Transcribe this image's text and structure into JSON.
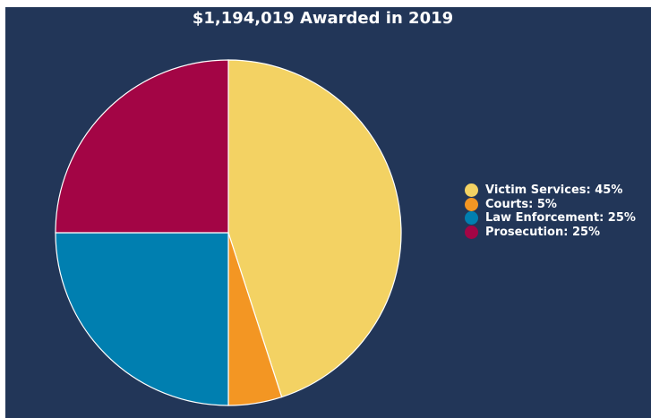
{
  "chart_data": {
    "type": "pie",
    "title": "$1,194,019 Awarded in 2019",
    "slices": [
      {
        "label": "Victim Services: 45%",
        "value": 45,
        "color": "#f3d263"
      },
      {
        "label": "Courts: 5%",
        "value": 5,
        "color": "#f39623"
      },
      {
        "label": "Law Enforcement: 25%",
        "value": 25,
        "color": "#007fb0"
      },
      {
        "label": "Prosecution: 25%",
        "value": 25,
        "color": "#a30545"
      }
    ],
    "legend_position": "right"
  },
  "colors": {
    "background": "#223658",
    "slice_border": "#ffffff",
    "text": "#ffffff"
  }
}
